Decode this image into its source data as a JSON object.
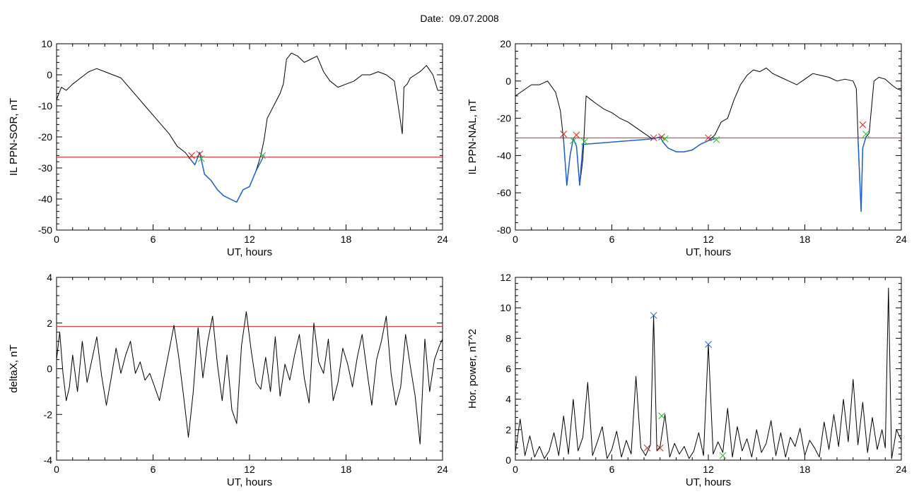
{
  "page": {
    "title": "Date:  09.07.2008"
  },
  "chart_data": [
    {
      "id": "ppn-sor",
      "type": "line",
      "xlabel": "UT, hours",
      "ylabel": "IL PPN-SOR, nT",
      "xlim": [
        0,
        24
      ],
      "ylim": [
        -50,
        10
      ],
      "xticks": [
        0,
        6,
        12,
        18,
        24
      ],
      "yticks": [
        -50,
        -40,
        -30,
        -20,
        -10,
        0,
        10
      ],
      "threshold": -26.5,
      "series": [
        {
          "color": "#000000",
          "x": [
            0,
            0.3,
            0.6,
            1.0,
            1.5,
            2.0,
            2.5,
            3.0,
            3.5,
            4.0,
            4.5,
            5.0,
            5.5,
            6.0,
            6.5,
            7.0,
            7.5,
            8.0,
            8.3,
            8.6,
            8.9,
            9.2,
            9.6,
            10.0,
            10.4,
            10.8,
            11.2,
            11.6,
            12.0,
            12.4,
            12.7,
            12.9,
            13.1,
            13.3,
            13.6,
            13.9,
            14.1,
            14.3,
            14.6,
            15.0,
            15.4,
            15.8,
            16.2,
            16.6,
            17.0,
            17.5,
            18.0,
            18.5,
            19.0,
            19.5,
            20.0,
            20.5,
            21.0,
            21.3,
            21.5,
            21.6,
            21.8,
            22.0,
            22.3,
            22.6,
            23.0,
            23.4,
            23.7,
            24.0
          ],
          "y": [
            -8,
            -4,
            -5,
            -3,
            -1,
            1,
            2,
            1,
            0,
            -1,
            -4,
            -7,
            -10,
            -13,
            -16,
            -19,
            -23,
            -25,
            -27,
            -29,
            -25,
            -32,
            -34,
            -37,
            -39,
            -40,
            -41,
            -37,
            -36,
            -31,
            -26,
            -21,
            -14,
            -12,
            -9,
            -6,
            -3,
            5,
            7,
            6,
            4,
            5,
            6,
            1,
            -2,
            -4,
            -3,
            -2,
            0,
            0,
            1,
            0,
            -2,
            -12,
            -19,
            -4,
            -3,
            -1,
            0,
            1,
            3,
            0,
            -5,
            -5
          ]
        },
        {
          "color": "#1f5fd0",
          "x": [
            8.3,
            8.6,
            8.9,
            9.2,
            9.6,
            10.0,
            10.4,
            10.8,
            11.2,
            11.6,
            12.0,
            12.4,
            12.7,
            12.9
          ],
          "y": [
            -27,
            -29,
            -25,
            -32,
            -34,
            -37,
            -39,
            -40,
            -41,
            -37,
            -36,
            -31,
            -28,
            -26
          ]
        }
      ],
      "markers": [
        {
          "x": 8.4,
          "y": -26,
          "color": "#e02020"
        },
        {
          "x": 8.9,
          "y": -25.5,
          "color": "#e02020"
        },
        {
          "x": 9.0,
          "y": -27,
          "color": "#20c020"
        },
        {
          "x": 12.8,
          "y": -26,
          "color": "#20c020"
        }
      ]
    },
    {
      "id": "ppn-nal",
      "type": "line",
      "xlabel": "UT, hours",
      "ylabel": "IL PPN-NAL, nT",
      "xlim": [
        0,
        24
      ],
      "ylim": [
        -80,
        20
      ],
      "xticks": [
        0,
        6,
        12,
        18,
        24
      ],
      "yticks": [
        -80,
        -60,
        -40,
        -20,
        0,
        20
      ],
      "threshold": -30.5,
      "series": [
        {
          "color": "#000000",
          "x": [
            0,
            0.5,
            1.0,
            1.5,
            2.0,
            2.5,
            2.8,
            3.0,
            3.2,
            3.4,
            3.6,
            3.8,
            4.0,
            4.2,
            4.4,
            4.7,
            5.0,
            5.5,
            6.0,
            6.5,
            7.0,
            7.5,
            8.0,
            8.5,
            9.0,
            9.2,
            9.5,
            10.0,
            10.5,
            11.0,
            11.5,
            12.0,
            12.4,
            12.8,
            13.2,
            13.6,
            14.0,
            14.4,
            14.8,
            15.2,
            15.6,
            16.0,
            16.5,
            17.0,
            17.5,
            18.0,
            18.5,
            19.0,
            19.5,
            20.0,
            20.5,
            21.0,
            21.2,
            21.3,
            21.5,
            21.6,
            21.8,
            22.0,
            22.3,
            22.6,
            23.0,
            23.4,
            23.7,
            24.0
          ],
          "y": [
            -8,
            -5,
            -2,
            -2,
            0,
            -6,
            -16,
            -32,
            -56,
            -40,
            -31,
            -35,
            -56,
            -42,
            -8,
            -10,
            -12,
            -15,
            -17,
            -20,
            -22,
            -25,
            -28,
            -31,
            -30,
            -33,
            -36,
            -38,
            -38,
            -37,
            -34,
            -32,
            -29,
            -22,
            -20,
            -10,
            -2,
            3,
            6,
            5,
            7,
            4,
            2,
            0,
            -2,
            1,
            4,
            3,
            2,
            0,
            1,
            0,
            -4,
            -28,
            -70,
            -36,
            -30,
            -28,
            0,
            2,
            1,
            -2,
            -4,
            -5
          ]
        },
        {
          "color": "#1f5fd0",
          "x": [
            3.0,
            3.2,
            3.4,
            3.6,
            3.8,
            4.0,
            4.2,
            8.6,
            9.0,
            9.2,
            9.5,
            10.0,
            10.5,
            11.0,
            11.5,
            12.0,
            12.4
          ],
          "y": [
            -32,
            -56,
            -40,
            -31,
            -35,
            -56,
            -34,
            -31,
            -30,
            -33,
            -36,
            -38,
            -38,
            -37,
            -34,
            -32,
            -31
          ]
        },
        {
          "color": "#1f5fd0",
          "x": [
            21.3,
            21.5,
            21.6,
            21.8
          ],
          "y": [
            -30,
            -70,
            -36,
            -30
          ]
        }
      ],
      "markers": [
        {
          "x": 3.0,
          "y": -28.5,
          "color": "#e02020"
        },
        {
          "x": 3.6,
          "y": -32,
          "color": "#20c020"
        },
        {
          "x": 3.8,
          "y": -29,
          "color": "#e02020"
        },
        {
          "x": 4.3,
          "y": -32.5,
          "color": "#20c020"
        },
        {
          "x": 8.6,
          "y": -30.5,
          "color": "#e02020"
        },
        {
          "x": 9.1,
          "y": -30,
          "color": "#e02020"
        },
        {
          "x": 9.3,
          "y": -31,
          "color": "#20c020"
        },
        {
          "x": 12.0,
          "y": -30.5,
          "color": "#e02020"
        },
        {
          "x": 12.5,
          "y": -31.5,
          "color": "#20c020"
        },
        {
          "x": 21.6,
          "y": -23.5,
          "color": "#e02020"
        },
        {
          "x": 21.8,
          "y": -28.5,
          "color": "#20c020"
        }
      ]
    },
    {
      "id": "deltax",
      "type": "line",
      "xlabel": "UT, hours",
      "ylabel": "deltaX, nT",
      "xlim": [
        0,
        24
      ],
      "ylim": [
        -4,
        4
      ],
      "xticks": [
        0,
        6,
        12,
        18,
        24
      ],
      "yticks": [
        -4,
        -2,
        0,
        2,
        4
      ],
      "threshold": 1.85,
      "series": [
        {
          "color": "#000000",
          "x": [
            0,
            0.2,
            0.4,
            0.6,
            0.8,
            1.0,
            1.3,
            1.6,
            1.9,
            2.2,
            2.5,
            2.8,
            3.1,
            3.4,
            3.7,
            4.0,
            4.3,
            4.6,
            4.9,
            5.2,
            5.5,
            5.8,
            6.1,
            6.4,
            6.7,
            7.0,
            7.3,
            7.6,
            7.9,
            8.2,
            8.5,
            8.8,
            9.1,
            9.4,
            9.7,
            10.0,
            10.3,
            10.6,
            10.9,
            11.2,
            11.5,
            11.8,
            12.1,
            12.4,
            12.7,
            13.0,
            13.3,
            13.6,
            13.9,
            14.2,
            14.5,
            14.8,
            15.1,
            15.4,
            15.7,
            16.0,
            16.3,
            16.6,
            16.9,
            17.2,
            17.5,
            17.8,
            18.1,
            18.4,
            18.7,
            19.0,
            19.3,
            19.6,
            19.9,
            20.2,
            20.5,
            20.8,
            21.1,
            21.4,
            21.7,
            22.0,
            22.3,
            22.6,
            22.9,
            23.2,
            23.5,
            23.8,
            24.0
          ],
          "y": [
            0.4,
            1.6,
            -0.2,
            -1.4,
            -0.8,
            0.6,
            -1.0,
            1.2,
            -0.6,
            0.4,
            1.4,
            -0.3,
            -1.6,
            -0.4,
            0.9,
            -0.2,
            0.6,
            1.2,
            -0.2,
            0.3,
            -0.5,
            -0.2,
            -0.8,
            -1.4,
            -0.3,
            0.8,
            1.9,
            0.5,
            -1.2,
            -3.0,
            -1.0,
            1.8,
            -0.4,
            1.2,
            2.3,
            0.2,
            -1.4,
            0.6,
            -1.8,
            -2.4,
            1.0,
            2.5,
            0.8,
            -0.6,
            -0.9,
            0.5,
            -1.0,
            1.4,
            -1.2,
            0.2,
            -0.5,
            0.6,
            1.5,
            -0.4,
            -1.5,
            2.0,
            0.3,
            -0.2,
            1.3,
            -1.4,
            -0.6,
            0.9,
            0.2,
            -0.8,
            0.5,
            1.5,
            -0.1,
            -1.6,
            0.4,
            1.2,
            2.3,
            -0.2,
            -1.6,
            -0.8,
            1.5,
            0.1,
            -1.2,
            -3.3,
            1.3,
            -1.0,
            0.4,
            1.0,
            1.3
          ]
        }
      ],
      "markers": []
    },
    {
      "id": "hor-power",
      "type": "line",
      "xlabel": "UT, hours",
      "ylabel": "Hor. power, nT^2",
      "xlim": [
        0,
        24
      ],
      "ylim": [
        0,
        12
      ],
      "xticks": [
        0,
        6,
        12,
        18,
        24
      ],
      "yticks": [
        0,
        2,
        4,
        6,
        8,
        10,
        12
      ],
      "threshold": null,
      "series": [
        {
          "color": "#000000",
          "x": [
            0,
            0.3,
            0.6,
            0.9,
            1.2,
            1.5,
            1.8,
            2.1,
            2.4,
            2.7,
            3.0,
            3.3,
            3.6,
            3.9,
            4.2,
            4.5,
            4.8,
            5.1,
            5.4,
            5.7,
            6.0,
            6.3,
            6.6,
            6.9,
            7.2,
            7.5,
            7.8,
            8.1,
            8.4,
            8.6,
            8.8,
            9.0,
            9.3,
            9.6,
            9.9,
            10.2,
            10.5,
            10.8,
            11.1,
            11.4,
            11.7,
            12.0,
            12.3,
            12.6,
            12.9,
            13.2,
            13.5,
            13.8,
            14.1,
            14.4,
            14.7,
            15.0,
            15.3,
            15.6,
            15.9,
            16.2,
            16.5,
            16.8,
            17.1,
            17.4,
            17.7,
            18.0,
            18.3,
            18.6,
            18.9,
            19.2,
            19.5,
            19.8,
            20.1,
            20.4,
            20.7,
            21.0,
            21.3,
            21.6,
            21.9,
            22.2,
            22.5,
            22.8,
            23.0,
            23.2,
            23.4,
            23.7,
            24.0
          ],
          "y": [
            0.5,
            2.7,
            0.3,
            1.6,
            0.2,
            0.9,
            0.1,
            0.6,
            1.8,
            0.3,
            2.9,
            0.4,
            4.0,
            0.6,
            1.5,
            5.1,
            0.3,
            1.2,
            2.2,
            0.1,
            0.7,
            1.9,
            0.2,
            1.3,
            0.4,
            5.5,
            0.8,
            0.3,
            1.0,
            9.5,
            0.6,
            0.9,
            3.0,
            0.2,
            1.1,
            0.4,
            0.9,
            0.1,
            0.6,
            1.8,
            0.3,
            7.6,
            0.4,
            1.2,
            0.5,
            3.4,
            0.2,
            2.2,
            0.6,
            1.4,
            0.2,
            2.0,
            0.5,
            1.1,
            2.6,
            0.3,
            1.8,
            0.2,
            1.5,
            0.9,
            2.1,
            0.3,
            1.3,
            0.8,
            0.2,
            2.5,
            0.7,
            3.0,
            0.9,
            4.0,
            1.2,
            5.3,
            1.0,
            3.8,
            0.5,
            2.8,
            0.7,
            2.0,
            0.8,
            11.3,
            0.1,
            2.0,
            1.3
          ]
        }
      ],
      "markers": [
        {
          "x": 8.6,
          "y": 9.5,
          "color": "#1f5fd0"
        },
        {
          "x": 12.0,
          "y": 7.6,
          "color": "#1f5fd0"
        },
        {
          "x": 8.2,
          "y": 0.8,
          "color": "#e02020"
        },
        {
          "x": 9.0,
          "y": 0.8,
          "color": "#e02020"
        },
        {
          "x": 9.1,
          "y": 2.9,
          "color": "#20c020"
        },
        {
          "x": 12.9,
          "y": 0.3,
          "color": "#20c020"
        }
      ]
    }
  ]
}
